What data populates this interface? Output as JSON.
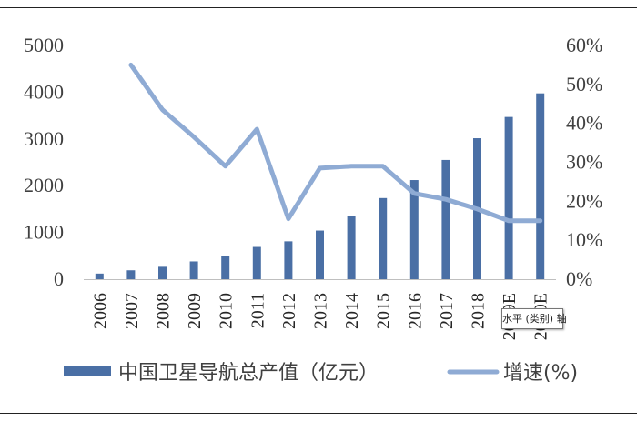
{
  "chart_data": {
    "type": "bar",
    "categories": [
      "2006",
      "2007",
      "2008",
      "2009",
      "2010",
      "2011",
      "2012",
      "2013",
      "2014",
      "2015",
      "2016",
      "2017",
      "2018",
      "2019E",
      "2020E"
    ],
    "series": [
      {
        "name": "中国卫星导航总产值（亿元）",
        "type": "bar",
        "axis": "left",
        "color": "#4a6fa5",
        "values": [
          120,
          190,
          265,
          380,
          490,
          690,
          810,
          1040,
          1345,
          1735,
          2120,
          2550,
          3015,
          3470,
          3975
        ]
      },
      {
        "name": "增速(%)",
        "type": "line",
        "axis": "right",
        "color": "#8fabd4",
        "values": [
          null,
          55,
          43.5,
          36.5,
          29,
          38.5,
          15.5,
          28.5,
          29,
          29,
          22,
          20.5,
          18,
          15,
          15
        ]
      }
    ],
    "y_left": {
      "min": 0,
      "max": 5000,
      "ticks": [
        0,
        1000,
        2000,
        3000,
        4000,
        5000
      ]
    },
    "y_right": {
      "min": 0,
      "max": 60,
      "ticks": [
        0,
        10,
        20,
        30,
        40,
        50,
        60
      ],
      "format": "percent"
    },
    "legend_position": "bottom",
    "grid": false
  },
  "tooltip": {
    "text": "水平 (类别) 轴"
  }
}
